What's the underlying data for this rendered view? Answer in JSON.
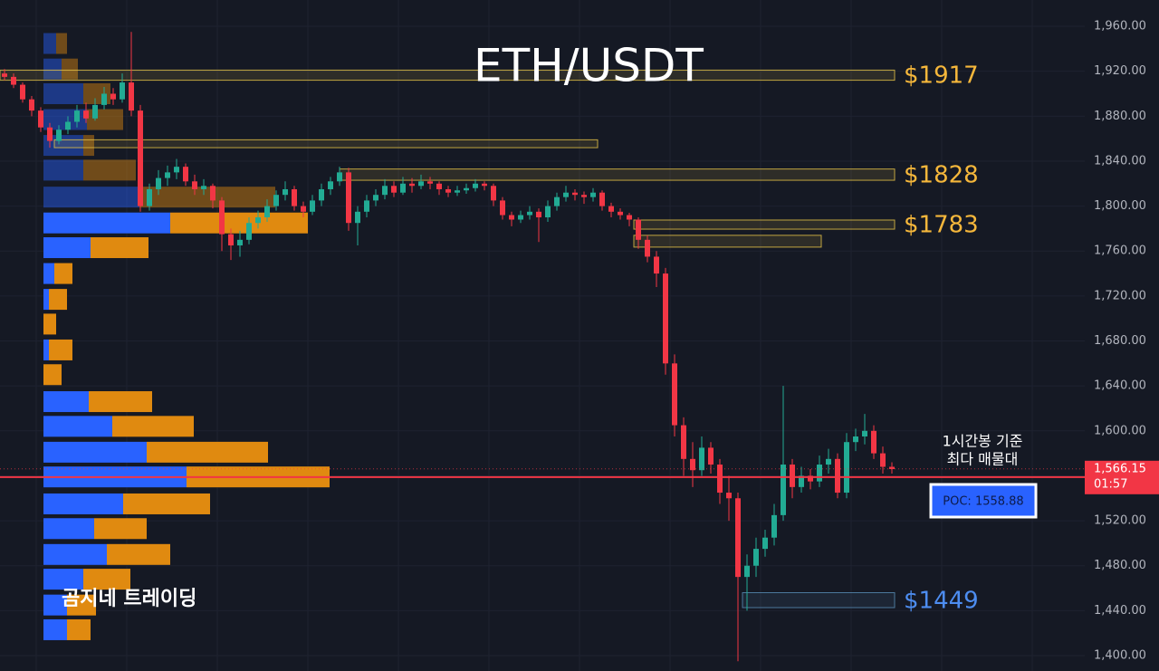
{
  "chart_data": {
    "type": "candlestick",
    "title": "ETH/USDT",
    "watermark": "곰지네 트레이딩",
    "annotation": [
      "1시간봉 기준",
      "최다 매물대"
    ],
    "up_color": "#22ab94",
    "down_color": "#f23645",
    "ylim": [
      1386.3,
      1983.4
    ],
    "yticks": [
      {
        "value": 1960,
        "label": "1,960.00"
      },
      {
        "value": 1920,
        "label": "1,920.00"
      },
      {
        "value": 1880,
        "label": "1,880.00"
      },
      {
        "value": 1840,
        "label": "1,840.00"
      },
      {
        "value": 1800,
        "label": "1,800.00"
      },
      {
        "value": 1760,
        "label": "1,760.00"
      },
      {
        "value": 1720,
        "label": "1,720.00"
      },
      {
        "value": 1680,
        "label": "1,680.00"
      },
      {
        "value": 1640,
        "label": "1,640.00"
      },
      {
        "value": 1600,
        "label": "1,600.00"
      },
      {
        "value": 1560,
        "label": "1,560.00"
      },
      {
        "value": 1520,
        "label": "1,520.00"
      },
      {
        "value": 1480,
        "label": "1,480.00"
      },
      {
        "value": 1440,
        "label": "1,440.00"
      },
      {
        "value": 1400,
        "label": "1,400.00"
      }
    ],
    "grid": true,
    "current_price": {
      "value": 1566.15,
      "label": "1,566.15"
    },
    "countdown": "01:57",
    "poc": {
      "value": 1558.88,
      "label": "POC: 1558.88"
    },
    "zones": [
      {
        "label": "$1917",
        "top": 1921,
        "bottom": 1912,
        "color": "#e8c547",
        "label_color": "#f5b73b"
      },
      {
        "top": 1859,
        "bottom": 1852,
        "color": "#e8c547"
      },
      {
        "label": "$1828",
        "top": 1833,
        "bottom": 1823,
        "color": "#e8c547",
        "label_color": "#f5b73b"
      },
      {
        "label": "$1783",
        "top": 1787.6,
        "bottom": 1779.5,
        "color": "#e8c547",
        "label_color": "#f5b73b"
      },
      {
        "top": 1774,
        "bottom": 1763.5,
        "color": "#e8c547"
      },
      {
        "label": "$1449",
        "top": 1456,
        "bottom": 1442.7,
        "color": "#5a8fb8",
        "label_color": "#4d8df0"
      }
    ],
    "volume_profile": {
      "buy_color": "#2962ff",
      "sell_color": "#e08a10",
      "prices": [
        1944.7,
        1922,
        1900,
        1877,
        1854,
        1832,
        1808,
        1785,
        1763,
        1740,
        1717,
        1695,
        1672,
        1650,
        1626,
        1604,
        1581,
        1559,
        1535,
        1513,
        1490,
        1468,
        1445,
        1423
      ],
      "buy": [
        14,
        20,
        44,
        48,
        44,
        44,
        106,
        140,
        52,
        12,
        6,
        0,
        6,
        0,
        50,
        76,
        114,
        158,
        88,
        56,
        70,
        44,
        26,
        26
      ],
      "sell": [
        12,
        18,
        30,
        40,
        12,
        58,
        150,
        152,
        64,
        20,
        20,
        14,
        26,
        20,
        70,
        90,
        134,
        158,
        96,
        58,
        70,
        52,
        32,
        26
      ]
    },
    "series": [
      {
        "name": "ETH/USDT",
        "values": [
          [
            1918,
            1922,
            1912,
            1915
          ],
          [
            1915,
            1918,
            1905,
            1908
          ],
          [
            1908,
            1910,
            1892,
            1895
          ],
          [
            1895,
            1898,
            1880,
            1885
          ],
          [
            1885,
            1888,
            1866,
            1870
          ],
          [
            1870,
            1874,
            1852,
            1858
          ],
          [
            1858,
            1872,
            1855,
            1868
          ],
          [
            1868,
            1880,
            1864,
            1875
          ],
          [
            1875,
            1890,
            1870,
            1885
          ],
          [
            1885,
            1892,
            1874,
            1878
          ],
          [
            1878,
            1896,
            1876,
            1890
          ],
          [
            1890,
            1906,
            1886,
            1900
          ],
          [
            1900,
            1905,
            1890,
            1895
          ],
          [
            1895,
            1918,
            1892,
            1910
          ],
          [
            1910,
            1955,
            1880,
            1885
          ],
          [
            1885,
            1890,
            1795,
            1800
          ],
          [
            1800,
            1820,
            1796,
            1815
          ],
          [
            1815,
            1832,
            1810,
            1825
          ],
          [
            1825,
            1836,
            1818,
            1830
          ],
          [
            1830,
            1842,
            1824,
            1835
          ],
          [
            1835,
            1838,
            1818,
            1822
          ],
          [
            1822,
            1828,
            1810,
            1815
          ],
          [
            1815,
            1824,
            1810,
            1818
          ],
          [
            1818,
            1820,
            1798,
            1805
          ],
          [
            1805,
            1808,
            1760,
            1775
          ],
          [
            1775,
            1780,
            1752,
            1765
          ],
          [
            1765,
            1778,
            1755,
            1770
          ],
          [
            1770,
            1790,
            1766,
            1785
          ],
          [
            1785,
            1796,
            1780,
            1790
          ],
          [
            1790,
            1806,
            1786,
            1800
          ],
          [
            1800,
            1814,
            1796,
            1810
          ],
          [
            1810,
            1822,
            1805,
            1815
          ],
          [
            1815,
            1818,
            1796,
            1800
          ],
          [
            1800,
            1804,
            1790,
            1795
          ],
          [
            1795,
            1810,
            1792,
            1805
          ],
          [
            1805,
            1820,
            1800,
            1815
          ],
          [
            1815,
            1826,
            1810,
            1822
          ],
          [
            1822,
            1835,
            1818,
            1830
          ],
          [
            1830,
            1834,
            1778,
            1785
          ],
          [
            1785,
            1800,
            1765,
            1795
          ],
          [
            1795,
            1810,
            1790,
            1805
          ],
          [
            1805,
            1815,
            1800,
            1810
          ],
          [
            1810,
            1824,
            1806,
            1818
          ],
          [
            1818,
            1822,
            1808,
            1812
          ],
          [
            1812,
            1826,
            1810,
            1820
          ],
          [
            1820,
            1825,
            1812,
            1818
          ],
          [
            1818,
            1828,
            1815,
            1822
          ],
          [
            1822,
            1826,
            1815,
            1820
          ],
          [
            1820,
            1822,
            1810,
            1815
          ],
          [
            1815,
            1818,
            1808,
            1812
          ],
          [
            1812,
            1818,
            1809,
            1814
          ],
          [
            1814,
            1820,
            1811,
            1816
          ],
          [
            1816,
            1824,
            1813,
            1820
          ],
          [
            1820,
            1822,
            1814,
            1818
          ],
          [
            1818,
            1820,
            1800,
            1805
          ],
          [
            1805,
            1808,
            1788,
            1792
          ],
          [
            1792,
            1795,
            1782,
            1788
          ],
          [
            1788,
            1796,
            1785,
            1792
          ],
          [
            1792,
            1800,
            1788,
            1795
          ],
          [
            1795,
            1798,
            1768,
            1790
          ],
          [
            1790,
            1805,
            1786,
            1800
          ],
          [
            1800,
            1812,
            1796,
            1808
          ],
          [
            1808,
            1818,
            1804,
            1812
          ],
          [
            1812,
            1815,
            1805,
            1810
          ],
          [
            1810,
            1813,
            1802,
            1808
          ],
          [
            1808,
            1816,
            1804,
            1812
          ],
          [
            1812,
            1814,
            1796,
            1800
          ],
          [
            1800,
            1803,
            1790,
            1795
          ],
          [
            1795,
            1798,
            1788,
            1792
          ],
          [
            1792,
            1794,
            1782,
            1788
          ],
          [
            1788,
            1790,
            1762,
            1770
          ],
          [
            1770,
            1774,
            1750,
            1755
          ],
          [
            1755,
            1760,
            1728,
            1740
          ],
          [
            1740,
            1745,
            1650,
            1660
          ],
          [
            1660,
            1668,
            1595,
            1605
          ],
          [
            1605,
            1612,
            1560,
            1575
          ],
          [
            1575,
            1590,
            1550,
            1565
          ],
          [
            1565,
            1595,
            1560,
            1585
          ],
          [
            1585,
            1590,
            1562,
            1570
          ],
          [
            1570,
            1575,
            1535,
            1545
          ],
          [
            1545,
            1560,
            1520,
            1540
          ],
          [
            1540,
            1545,
            1395,
            1470
          ],
          [
            1470,
            1490,
            1440,
            1480
          ],
          [
            1480,
            1505,
            1470,
            1495
          ],
          [
            1495,
            1512,
            1488,
            1505
          ],
          [
            1505,
            1535,
            1498,
            1525
          ],
          [
            1525,
            1640,
            1520,
            1570
          ],
          [
            1570,
            1575,
            1540,
            1550
          ],
          [
            1550,
            1568,
            1545,
            1560
          ],
          [
            1560,
            1566,
            1548,
            1555
          ],
          [
            1555,
            1578,
            1550,
            1570
          ],
          [
            1570,
            1584,
            1562,
            1575
          ],
          [
            1575,
            1580,
            1540,
            1545
          ],
          [
            1545,
            1598,
            1540,
            1590
          ],
          [
            1590,
            1602,
            1582,
            1595
          ],
          [
            1595,
            1615,
            1588,
            1600
          ],
          [
            1600,
            1605,
            1575,
            1580
          ],
          [
            1580,
            1586,
            1562,
            1568
          ],
          [
            1568,
            1572,
            1562,
            1566
          ]
        ]
      }
    ]
  }
}
